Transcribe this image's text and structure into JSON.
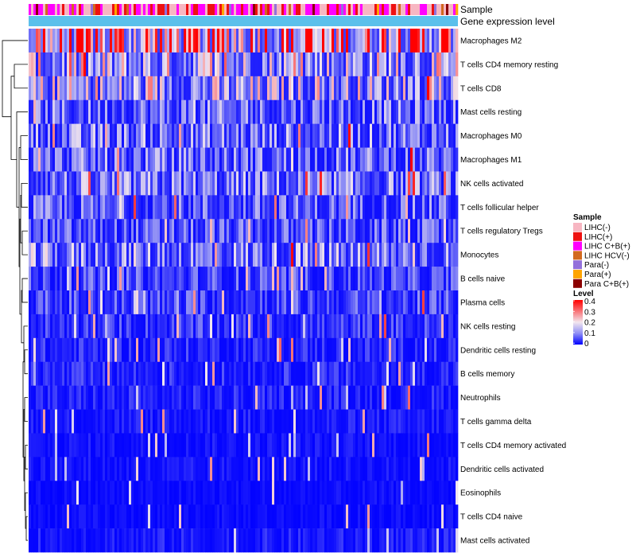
{
  "chart_data": {
    "type": "heatmap",
    "annotation_rows": [
      "Sample",
      "Gene expression level"
    ],
    "rows": [
      "Macrophages M2",
      "T cells CD4 memory resting",
      "T cells CD8",
      "Mast cells resting",
      "Macrophages M0",
      "Macrophages M1",
      "NK cells activated",
      "T cells follicular helper",
      "T cells regulatory  Tregs",
      "Monocytes",
      "B cells naive",
      "Plasma cells",
      "NK cells resting",
      "Dendritic cells resting",
      "B cells memory",
      "Neutrophils",
      "T cells gamma delta",
      "T cells CD4 memory activated",
      "Dendritic cells activated",
      "Eosinophils",
      "T cells CD4 naive",
      "Mast cells activated"
    ],
    "row_mean_level": [
      0.27,
      0.14,
      0.13,
      0.08,
      0.09,
      0.08,
      0.09,
      0.07,
      0.06,
      0.1,
      0.05,
      0.05,
      0.04,
      0.03,
      0.03,
      0.025,
      0.02,
      0.015,
      0.015,
      0.01,
      0.01,
      0.02
    ],
    "n_columns": 180,
    "color_scale": {
      "min": 0,
      "max": 0.4,
      "stops": [
        {
          "value": 0,
          "color": "#0000ff"
        },
        {
          "value": 0.1,
          "color": "#8f8ff5"
        },
        {
          "value": 0.2,
          "color": "#f2e6ee"
        },
        {
          "value": 0.4,
          "color": "#ff0000"
        }
      ]
    },
    "legend": {
      "sample_title": "Sample",
      "sample_items": [
        {
          "label": "LIHC(-)",
          "color": "#f7b6c2"
        },
        {
          "label": "LIHC(+)",
          "color": "#ee1111"
        },
        {
          "label": "LIHC C+B(+)",
          "color": "#ff00ff"
        },
        {
          "label": "LIHC HCV(-)",
          "color": "#d2691e"
        },
        {
          "label": "Para(-)",
          "color": "#9370db"
        },
        {
          "label": "Para(+)",
          "color": "#ffa500"
        },
        {
          "label": "Para C+B(+)",
          "color": "#8b0000"
        }
      ],
      "level_title": "Level",
      "level_ticks": [
        "0.4",
        "0.3",
        "0.2",
        "0.1",
        "0"
      ]
    },
    "gene_expression_color": "#5bc0eb"
  }
}
